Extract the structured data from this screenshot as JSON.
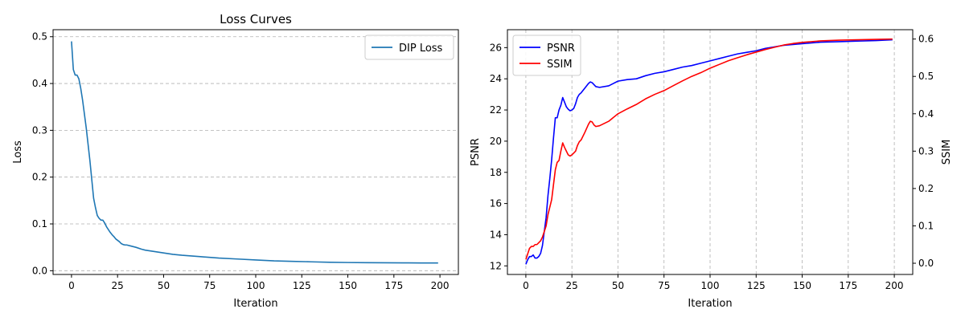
{
  "chart_data": [
    {
      "type": "line",
      "title": "Loss Curves",
      "xlabel": "Iteration",
      "ylabel": "Loss",
      "xlim": [
        -10,
        210
      ],
      "ylim": [
        -0.008,
        0.515
      ],
      "xticks": [
        0,
        25,
        50,
        75,
        100,
        125,
        150,
        175,
        200
      ],
      "yticks": [
        0.0,
        0.1,
        0.2,
        0.3,
        0.4,
        0.5
      ],
      "grid": "y",
      "legend": "top-right",
      "series": [
        {
          "name": "DIP Loss",
          "color": "#1f77b4",
          "points": [
            [
              0,
              0.49
            ],
            [
              1,
              0.43
            ],
            [
              2,
              0.418
            ],
            [
              3,
              0.418
            ],
            [
              4,
              0.41
            ],
            [
              5,
              0.39
            ],
            [
              6,
              0.365
            ],
            [
              7,
              0.335
            ],
            [
              8,
              0.305
            ],
            [
              9,
              0.27
            ],
            [
              10,
              0.235
            ],
            [
              11,
              0.195
            ],
            [
              12,
              0.155
            ],
            [
              13,
              0.135
            ],
            [
              14,
              0.118
            ],
            [
              15,
              0.112
            ],
            [
              16,
              0.108
            ],
            [
              17,
              0.108
            ],
            [
              18,
              0.102
            ],
            [
              19,
              0.094
            ],
            [
              20,
              0.088
            ],
            [
              21,
              0.082
            ],
            [
              22,
              0.077
            ],
            [
              23,
              0.073
            ],
            [
              24,
              0.068
            ],
            [
              25,
              0.065
            ],
            [
              26,
              0.062
            ],
            [
              27,
              0.058
            ],
            [
              28,
              0.056
            ],
            [
              29,
              0.055
            ],
            [
              30,
              0.055
            ],
            [
              32,
              0.053
            ],
            [
              35,
              0.05
            ],
            [
              38,
              0.046
            ],
            [
              40,
              0.044
            ],
            [
              45,
              0.041
            ],
            [
              50,
              0.038
            ],
            [
              55,
              0.035
            ],
            [
              60,
              0.033
            ],
            [
              70,
              0.03
            ],
            [
              80,
              0.027
            ],
            [
              90,
              0.025
            ],
            [
              100,
              0.023
            ],
            [
              110,
              0.021
            ],
            [
              120,
              0.02
            ],
            [
              130,
              0.019
            ],
            [
              140,
              0.018
            ],
            [
              150,
              0.0175
            ],
            [
              160,
              0.0172
            ],
            [
              170,
              0.017
            ],
            [
              180,
              0.0168
            ],
            [
              190,
              0.0166
            ],
            [
              199,
              0.0165
            ]
          ]
        }
      ]
    },
    {
      "type": "line",
      "title": "",
      "xlabel": "Iteration",
      "ylabel": "PSNR",
      "ylabel_right": "SSIM",
      "xlim": [
        -10,
        210
      ],
      "ylim": [
        11.45,
        27.15
      ],
      "ylim_right": [
        -0.03,
        0.625
      ],
      "xticks": [
        0,
        25,
        50,
        75,
        100,
        125,
        150,
        175,
        200
      ],
      "yticks": [
        12,
        14,
        16,
        18,
        20,
        22,
        24,
        26
      ],
      "yticks_right": [
        0.0,
        0.1,
        0.2,
        0.3,
        0.4,
        0.5,
        0.6
      ],
      "grid": "x",
      "legend": "top-left",
      "series": [
        {
          "name": "PSNR",
          "axis": "left",
          "color": "#0000ff",
          "points": [
            [
              0,
              12.1
            ],
            [
              1,
              12.4
            ],
            [
              2,
              12.6
            ],
            [
              3,
              12.6
            ],
            [
              4,
              12.7
            ],
            [
              5,
              12.5
            ],
            [
              6,
              12.5
            ],
            [
              7,
              12.6
            ],
            [
              8,
              12.8
            ],
            [
              9,
              13.3
            ],
            [
              10,
              14.2
            ],
            [
              11,
              15.1
            ],
            [
              12,
              16.5
            ],
            [
              13,
              17.6
            ],
            [
              14,
              18.8
            ],
            [
              15,
              20.2
            ],
            [
              16,
              21.5
            ],
            [
              17,
              21.5
            ],
            [
              18,
              22.0
            ],
            [
              19,
              22.3
            ],
            [
              20,
              22.8
            ],
            [
              21,
              22.5
            ],
            [
              22,
              22.2
            ],
            [
              23,
              22.05
            ],
            [
              24,
              21.95
            ],
            [
              25,
              22.0
            ],
            [
              26,
              22.1
            ],
            [
              27,
              22.4
            ],
            [
              28,
              22.8
            ],
            [
              29,
              23.0
            ],
            [
              30,
              23.1
            ],
            [
              32,
              23.4
            ],
            [
              34,
              23.7
            ],
            [
              35,
              23.8
            ],
            [
              36,
              23.75
            ],
            [
              38,
              23.5
            ],
            [
              40,
              23.45
            ],
            [
              45,
              23.55
            ],
            [
              50,
              23.85
            ],
            [
              55,
              23.95
            ],
            [
              60,
              24.0
            ],
            [
              65,
              24.2
            ],
            [
              70,
              24.35
            ],
            [
              75,
              24.45
            ],
            [
              80,
              24.6
            ],
            [
              85,
              24.75
            ],
            [
              90,
              24.85
            ],
            [
              95,
              25.0
            ],
            [
              100,
              25.15
            ],
            [
              105,
              25.3
            ],
            [
              110,
              25.45
            ],
            [
              115,
              25.6
            ],
            [
              120,
              25.7
            ],
            [
              125,
              25.8
            ],
            [
              130,
              25.95
            ],
            [
              135,
              26.05
            ],
            [
              140,
              26.15
            ],
            [
              145,
              26.2
            ],
            [
              150,
              26.25
            ],
            [
              160,
              26.35
            ],
            [
              170,
              26.38
            ],
            [
              180,
              26.42
            ],
            [
              190,
              26.45
            ],
            [
              199,
              26.5
            ]
          ]
        },
        {
          "name": "SSIM",
          "axis": "right",
          "color": "#ff0000",
          "points": [
            [
              0,
              0.01
            ],
            [
              1,
              0.025
            ],
            [
              2,
              0.04
            ],
            [
              3,
              0.045
            ],
            [
              4,
              0.045
            ],
            [
              5,
              0.05
            ],
            [
              6,
              0.05
            ],
            [
              7,
              0.055
            ],
            [
              8,
              0.06
            ],
            [
              9,
              0.07
            ],
            [
              10,
              0.085
            ],
            [
              11,
              0.1
            ],
            [
              12,
              0.13
            ],
            [
              13,
              0.15
            ],
            [
              14,
              0.17
            ],
            [
              15,
              0.21
            ],
            [
              16,
              0.25
            ],
            [
              17,
              0.27
            ],
            [
              18,
              0.275
            ],
            [
              19,
              0.3
            ],
            [
              20,
              0.322
            ],
            [
              21,
              0.31
            ],
            [
              22,
              0.3
            ],
            [
              23,
              0.29
            ],
            [
              24,
              0.287
            ],
            [
              25,
              0.29
            ],
            [
              26,
              0.295
            ],
            [
              27,
              0.3
            ],
            [
              28,
              0.315
            ],
            [
              29,
              0.325
            ],
            [
              30,
              0.33
            ],
            [
              32,
              0.35
            ],
            [
              34,
              0.372
            ],
            [
              35,
              0.38
            ],
            [
              36,
              0.378
            ],
            [
              37,
              0.37
            ],
            [
              38,
              0.366
            ],
            [
              40,
              0.368
            ],
            [
              45,
              0.38
            ],
            [
              50,
              0.4
            ],
            [
              55,
              0.413
            ],
            [
              60,
              0.425
            ],
            [
              65,
              0.44
            ],
            [
              70,
              0.452
            ],
            [
              75,
              0.462
            ],
            [
              80,
              0.475
            ],
            [
              85,
              0.488
            ],
            [
              90,
              0.5
            ],
            [
              95,
              0.51
            ],
            [
              100,
              0.522
            ],
            [
              105,
              0.532
            ],
            [
              110,
              0.542
            ],
            [
              115,
              0.55
            ],
            [
              120,
              0.558
            ],
            [
              125,
              0.565
            ],
            [
              130,
              0.572
            ],
            [
              135,
              0.578
            ],
            [
              140,
              0.584
            ],
            [
              145,
              0.588
            ],
            [
              150,
              0.591
            ],
            [
              160,
              0.595
            ],
            [
              170,
              0.597
            ],
            [
              180,
              0.598
            ],
            [
              190,
              0.599
            ],
            [
              199,
              0.6
            ]
          ]
        }
      ]
    }
  ]
}
